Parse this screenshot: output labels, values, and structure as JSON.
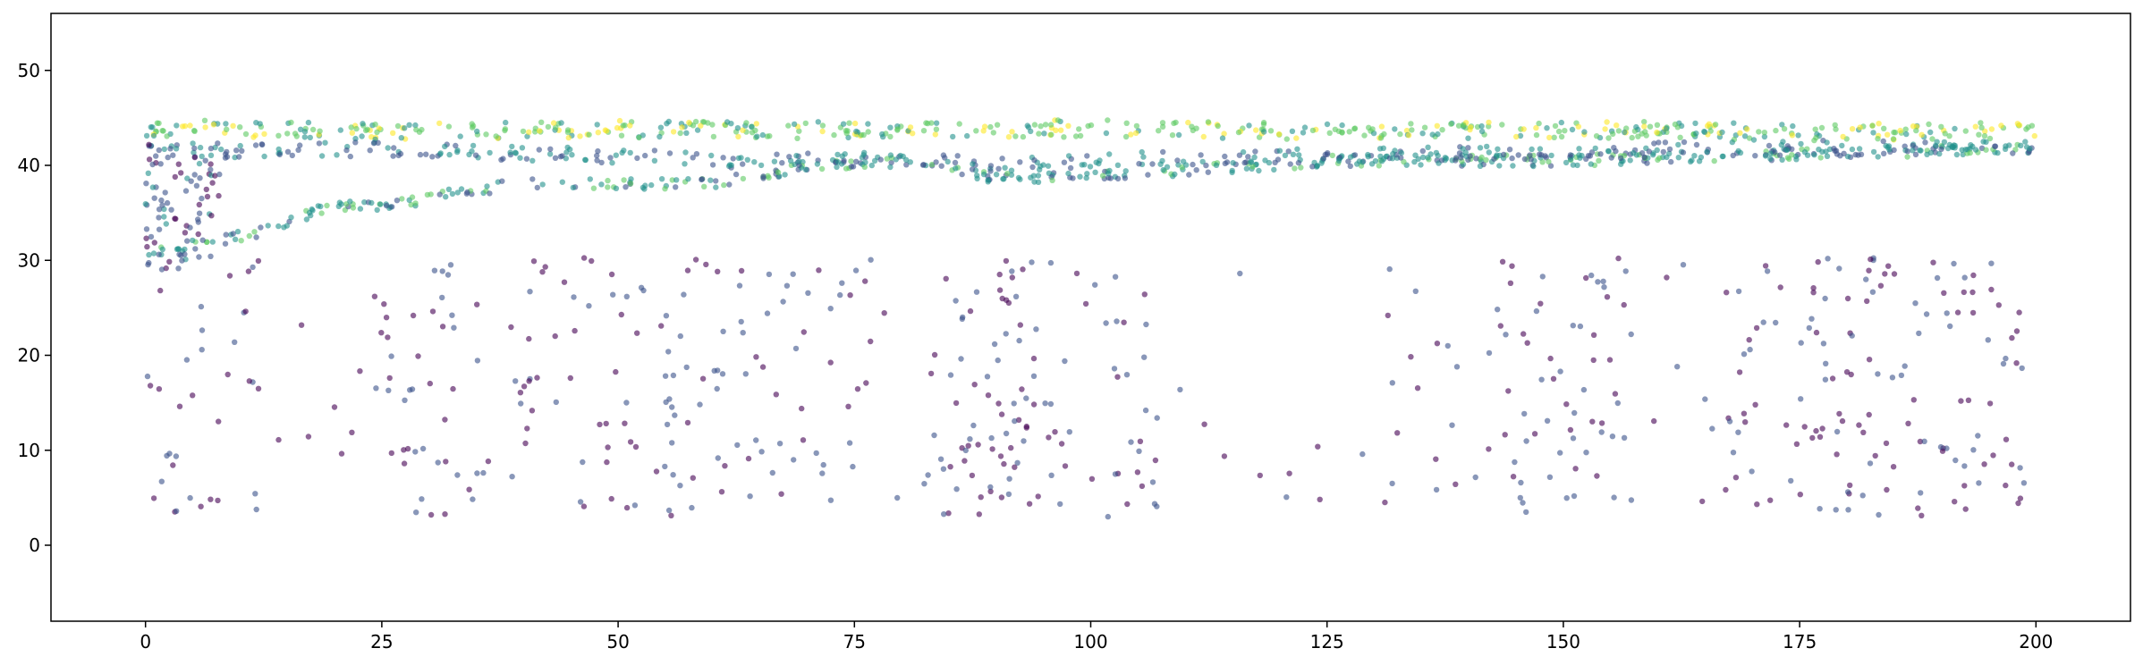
{
  "chart_data": {
    "type": "scatter",
    "title": "",
    "xlabel": "",
    "ylabel": "",
    "xlim": [
      -10,
      210
    ],
    "ylim": [
      -8,
      56
    ],
    "xticks": [
      0,
      25,
      50,
      75,
      100,
      125,
      150,
      175,
      200
    ],
    "yticks": [
      0,
      10,
      20,
      30,
      40,
      50
    ],
    "grid": false,
    "legend": "none",
    "colormap": [
      "#440154",
      "#3b528b",
      "#21918c",
      "#5ec962",
      "#fde725"
    ],
    "marker_alpha": 0.6,
    "series": [
      {
        "description": "upper dense band (green-yellow)",
        "segments": [
          [
            0,
            44.0
          ],
          [
            25,
            43.6
          ],
          [
            50,
            43.8
          ],
          [
            75,
            43.7
          ],
          [
            100,
            43.9
          ],
          [
            125,
            43.6
          ],
          [
            150,
            43.8
          ],
          [
            175,
            43.5
          ],
          [
            200,
            43.7
          ]
        ],
        "spread": 0.9,
        "color_range": [
          2,
          4
        ],
        "count": 520
      },
      {
        "description": "rising lower band (teal-green)",
        "segments": [
          [
            0,
            31.0
          ],
          [
            5,
            31.3
          ],
          [
            10,
            32.5
          ],
          [
            15,
            34.0
          ],
          [
            20,
            36.0
          ],
          [
            25,
            35.5
          ],
          [
            30,
            36.5
          ],
          [
            35,
            37.5
          ],
          [
            40,
            38.0
          ],
          [
            50,
            38.0
          ],
          [
            60,
            38.0
          ],
          [
            70,
            40.0
          ],
          [
            80,
            40.5
          ],
          [
            90,
            38.5
          ],
          [
            100,
            39.0
          ],
          [
            110,
            39.5
          ],
          [
            125,
            40.5
          ],
          [
            150,
            40.5
          ],
          [
            175,
            41.2
          ],
          [
            200,
            41.8
          ]
        ],
        "spread": 0.6,
        "color_range": [
          1,
          3
        ],
        "count": 480
      },
      {
        "description": "middle band (blue)",
        "segments": [
          [
            0,
            41.8
          ],
          [
            10,
            41.5
          ],
          [
            25,
            41.7
          ],
          [
            40,
            41.2
          ],
          [
            50,
            41.0
          ],
          [
            60,
            40.5
          ],
          [
            75,
            40.8
          ],
          [
            90,
            40.0
          ],
          [
            100,
            40.5
          ],
          [
            125,
            41.0
          ],
          [
            150,
            41.5
          ],
          [
            175,
            41.8
          ],
          [
            200,
            42.0
          ]
        ],
        "spread": 0.8,
        "color_range": [
          1,
          2
        ],
        "count": 380
      },
      {
        "description": "early vertical cluster near x=0-8",
        "x_range": [
          0,
          8
        ],
        "y_range": [
          29.5,
          42.5
        ],
        "color_range": [
          0,
          2
        ],
        "count": 90
      },
      {
        "description": "sparse low scatter (purple)",
        "x_range": [
          0,
          200
        ],
        "y_range": [
          3,
          30.5
        ],
        "clusters": [
          [
            0,
            30
          ],
          [
            30,
            15
          ],
          [
            50,
            25
          ],
          [
            65,
            30
          ],
          [
            88,
            15
          ],
          [
            98,
            25
          ],
          [
            150,
            20
          ],
          [
            175,
            20
          ],
          [
            190,
            25
          ]
        ],
        "color_range": [
          0,
          1
        ],
        "count": 620
      }
    ]
  }
}
